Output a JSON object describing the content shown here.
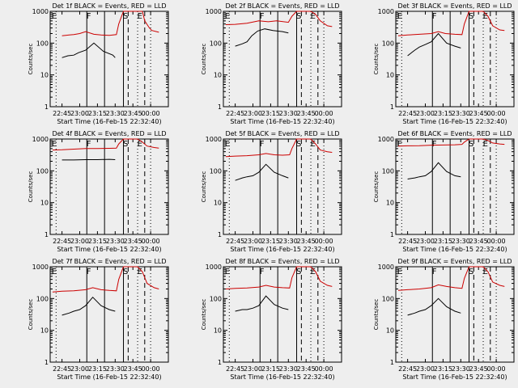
{
  "chart_data": [
    {
      "type": "line",
      "title": "Det 1f BLACK = Events, RED = LLD",
      "xlabel": "Start Time (16-Feb-15 22:32:40)",
      "ylabel": "Counts/sec",
      "x_ticks": [
        "22:45",
        "23:00",
        "23:15",
        "23:30",
        "23:45",
        "00:00"
      ],
      "y_ticks": [
        "1",
        "10",
        "100",
        "1000"
      ],
      "y_scale": "log",
      "ylim": [
        1,
        1000
      ],
      "markers": [
        "E",
        "F",
        "S",
        "E"
      ],
      "series": [
        {
          "name": "Events",
          "color": "#000000",
          "x": [
            0.1,
            0.15,
            0.2,
            0.24,
            0.3,
            0.37,
            0.45,
            0.53,
            0.55
          ],
          "y": [
            35,
            40,
            42,
            50,
            60,
            100,
            55,
            42,
            35
          ]
        },
        {
          "name": "LLD",
          "color": "#cc0000",
          "x": [
            0.1,
            0.16,
            0.2,
            0.25,
            0.3,
            0.37,
            0.43,
            0.5,
            0.56,
            0.58,
            0.62,
            0.66,
            0.74,
            0.78,
            0.8,
            0.84,
            0.86,
            0.92
          ],
          "y": [
            170,
            180,
            185,
            200,
            230,
            190,
            180,
            175,
            185,
            400,
            1000,
            1000,
            1000,
            1000,
            500,
            300,
            250,
            220
          ]
        }
      ]
    },
    {
      "type": "line",
      "title": "Det 2f BLACK = Events, RED = LLD",
      "xlabel": "Start Time (16-Feb-15 22:32:40)",
      "ylabel": "Counts/sec",
      "x_ticks": [
        "22:45",
        "23:00",
        "23:15",
        "23:30",
        "23:45",
        "00:00"
      ],
      "y_ticks": [
        "1",
        "10",
        "100",
        "1000"
      ],
      "y_scale": "log",
      "ylim": [
        1,
        1000
      ],
      "markers": [
        "E",
        "F",
        "S",
        "E"
      ],
      "series": [
        {
          "name": "Events",
          "color": "#000000",
          "x": [
            0.1,
            0.16,
            0.2,
            0.24,
            0.29,
            0.35,
            0.42,
            0.5,
            0.55
          ],
          "y": [
            80,
            95,
            110,
            170,
            240,
            280,
            250,
            230,
            210
          ]
        },
        {
          "name": "LLD",
          "color": "#cc0000",
          "x": [
            0.02,
            0.1,
            0.2,
            0.3,
            0.38,
            0.45,
            0.55,
            0.58,
            0.62,
            0.66,
            0.74,
            0.78,
            0.82,
            0.88,
            0.92
          ],
          "y": [
            380,
            390,
            420,
            500,
            470,
            500,
            450,
            700,
            1000,
            1000,
            1000,
            800,
            500,
            350,
            330
          ]
        }
      ]
    },
    {
      "type": "line",
      "title": "Det 3f BLACK = Events, RED = LLD",
      "xlabel": "Start Time (16-Feb-15 22:32:40)",
      "ylabel": "Counts/sec",
      "x_ticks": [
        "22:45",
        "23:00",
        "23:15",
        "23:30",
        "23:45",
        "00:00"
      ],
      "y_ticks": [
        "1",
        "10",
        "100",
        "1000"
      ],
      "y_scale": "log",
      "ylim": [
        1,
        1000
      ],
      "markers": [
        "E",
        "F",
        "S",
        "E"
      ],
      "series": [
        {
          "name": "Events",
          "color": "#000000",
          "x": [
            0.1,
            0.16,
            0.2,
            0.25,
            0.3,
            0.36,
            0.43,
            0.5,
            0.55
          ],
          "y": [
            40,
            60,
            75,
            90,
            110,
            200,
            100,
            80,
            70
          ]
        },
        {
          "name": "LLD",
          "color": "#cc0000",
          "x": [
            0.02,
            0.1,
            0.2,
            0.3,
            0.36,
            0.42,
            0.5,
            0.56,
            0.58,
            0.62,
            0.66,
            0.74,
            0.78,
            0.82,
            0.88,
            0.92
          ],
          "y": [
            170,
            180,
            190,
            200,
            230,
            200,
            190,
            185,
            400,
            1000,
            1000,
            1000,
            700,
            350,
            260,
            250
          ]
        }
      ]
    },
    {
      "type": "line",
      "title": "Det 4f BLACK = Events, RED = LLD",
      "xlabel": "Start Time (16-Feb-15 22:32:40)",
      "ylabel": "Counts/sec",
      "x_ticks": [
        "22:45",
        "23:00",
        "23:15",
        "23:30",
        "23:45",
        "00:00"
      ],
      "y_ticks": [
        "1",
        "10",
        "100",
        "1000"
      ],
      "y_scale": "log",
      "ylim": [
        1,
        1000
      ],
      "markers": [
        "E",
        "F",
        "S",
        "E"
      ],
      "series": [
        {
          "name": "Events",
          "color": "#000000",
          "x": [
            0.1,
            0.2,
            0.3,
            0.4,
            0.5,
            0.55
          ],
          "y": [
            220,
            220,
            225,
            225,
            230,
            225
          ]
        },
        {
          "name": "LLD",
          "color": "#cc0000",
          "x": [
            0.02,
            0.1,
            0.2,
            0.3,
            0.4,
            0.5,
            0.56,
            0.58,
            0.62,
            0.66,
            0.74,
            0.78,
            0.82,
            0.88,
            0.92
          ],
          "y": [
            450,
            460,
            480,
            500,
            500,
            510,
            520,
            700,
            1000,
            1000,
            1000,
            800,
            600,
            540,
            520
          ]
        }
      ]
    },
    {
      "type": "line",
      "title": "Det 5f BLACK = Events, RED = LLD",
      "xlabel": "Start Time (16-Feb-15 22:32:40)",
      "ylabel": "Counts/sec",
      "x_ticks": [
        "22:45",
        "23:00",
        "23:15",
        "23:30",
        "23:45",
        "00:00"
      ],
      "y_ticks": [
        "1",
        "10",
        "100",
        "1000"
      ],
      "y_scale": "log",
      "ylim": [
        1,
        1000
      ],
      "markers": [
        "E",
        "F",
        "S",
        "E"
      ],
      "series": [
        {
          "name": "Events",
          "color": "#000000",
          "x": [
            0.1,
            0.16,
            0.2,
            0.25,
            0.3,
            0.36,
            0.43,
            0.5,
            0.55
          ],
          "y": [
            50,
            60,
            65,
            70,
            90,
            160,
            90,
            70,
            60
          ]
        },
        {
          "name": "LLD",
          "color": "#cc0000",
          "x": [
            0.02,
            0.1,
            0.2,
            0.3,
            0.36,
            0.43,
            0.5,
            0.56,
            0.58,
            0.62,
            0.66,
            0.74,
            0.78,
            0.82,
            0.88,
            0.92
          ],
          "y": [
            280,
            290,
            300,
            320,
            350,
            320,
            310,
            320,
            500,
            1000,
            1000,
            1000,
            700,
            450,
            400,
            380
          ]
        }
      ]
    },
    {
      "type": "line",
      "title": "Det 6f BLACK = Events, RED = LLD",
      "xlabel": "Start Time (16-Feb-15 22:32:40)",
      "ylabel": "Counts/sec",
      "x_ticks": [
        "22:45",
        "23:00",
        "23:15",
        "23:30",
        "23:45",
        "00:00"
      ],
      "y_ticks": [
        "1",
        "10",
        "100",
        "1000"
      ],
      "y_scale": "log",
      "ylim": [
        1,
        1000
      ],
      "markers": [
        "E",
        "F",
        "S",
        "E"
      ],
      "series": [
        {
          "name": "Events",
          "color": "#000000",
          "x": [
            0.1,
            0.16,
            0.2,
            0.25,
            0.3,
            0.36,
            0.43,
            0.5,
            0.55
          ],
          "y": [
            55,
            60,
            65,
            70,
            95,
            180,
            95,
            70,
            65
          ]
        },
        {
          "name": "LLD",
          "color": "#cc0000",
          "x": [
            0.02,
            0.1,
            0.2,
            0.3,
            0.4,
            0.5,
            0.56,
            0.58,
            0.62,
            0.66,
            0.74,
            0.78,
            0.82,
            0.88,
            0.92
          ],
          "y": [
            600,
            610,
            620,
            640,
            650,
            660,
            680,
            800,
            1000,
            1000,
            1000,
            900,
            750,
            700,
            680
          ]
        }
      ]
    },
    {
      "type": "line",
      "title": "Det 7f BLACK = Events, RED = LLD",
      "xlabel": "Start Time (16-Feb-15 22:32:40)",
      "ylabel": "Counts/sec",
      "x_ticks": [
        "22:45",
        "23:00",
        "23:15",
        "23:30",
        "23:45",
        "00:00"
      ],
      "y_ticks": [
        "1",
        "10",
        "100",
        "1000"
      ],
      "y_scale": "log",
      "ylim": [
        1,
        1000
      ],
      "markers": [
        "E",
        "F",
        "S",
        "E"
      ],
      "series": [
        {
          "name": "Events",
          "color": "#000000",
          "x": [
            0.1,
            0.16,
            0.2,
            0.25,
            0.3,
            0.36,
            0.43,
            0.5,
            0.55
          ],
          "y": [
            30,
            35,
            40,
            45,
            60,
            110,
            60,
            45,
            40
          ]
        },
        {
          "name": "LLD",
          "color": "#cc0000",
          "x": [
            0.02,
            0.1,
            0.2,
            0.3,
            0.36,
            0.43,
            0.5,
            0.56,
            0.58,
            0.62,
            0.66,
            0.74,
            0.78,
            0.82,
            0.88,
            0.92
          ],
          "y": [
            160,
            170,
            175,
            190,
            220,
            190,
            180,
            175,
            400,
            1000,
            1000,
            1000,
            700,
            300,
            220,
            200
          ]
        }
      ]
    },
    {
      "type": "line",
      "title": "Det 8f BLACK = Events, RED = LLD",
      "xlabel": "Start Time (16-Feb-15 22:32:40)",
      "ylabel": "Counts/sec",
      "x_ticks": [
        "22:45",
        "23:00",
        "23:15",
        "23:30",
        "23:45",
        "00:00"
      ],
      "y_ticks": [
        "1",
        "10",
        "100",
        "1000"
      ],
      "y_scale": "log",
      "ylim": [
        1,
        1000
      ],
      "markers": [
        "E",
        "F",
        "S",
        "E"
      ],
      "series": [
        {
          "name": "Events",
          "color": "#000000",
          "x": [
            0.1,
            0.16,
            0.2,
            0.25,
            0.3,
            0.36,
            0.43,
            0.5,
            0.55
          ],
          "y": [
            40,
            45,
            45,
            50,
            60,
            120,
            65,
            50,
            45
          ]
        },
        {
          "name": "LLD",
          "color": "#cc0000",
          "x": [
            0.02,
            0.1,
            0.2,
            0.3,
            0.36,
            0.43,
            0.5,
            0.56,
            0.58,
            0.62,
            0.66,
            0.74,
            0.78,
            0.82,
            0.88,
            0.92
          ],
          "y": [
            200,
            210,
            215,
            230,
            260,
            230,
            220,
            215,
            450,
            1000,
            1000,
            1000,
            700,
            350,
            260,
            240
          ]
        }
      ]
    },
    {
      "type": "line",
      "title": "Det 9f BLACK = Events, RED = LLD",
      "xlabel": "Start Time (16-Feb-15 22:32:40)",
      "ylabel": "Counts/sec",
      "x_ticks": [
        "22:45",
        "23:00",
        "23:15",
        "23:30",
        "23:45",
        "00:00"
      ],
      "y_ticks": [
        "1",
        "10",
        "100",
        "1000"
      ],
      "y_scale": "log",
      "ylim": [
        1,
        1000
      ],
      "markers": [
        "E",
        "F",
        "S",
        "E"
      ],
      "series": [
        {
          "name": "Events",
          "color": "#000000",
          "x": [
            0.1,
            0.16,
            0.2,
            0.25,
            0.3,
            0.36,
            0.43,
            0.5,
            0.55
          ],
          "y": [
            30,
            35,
            40,
            45,
            60,
            100,
            55,
            40,
            35
          ]
        },
        {
          "name": "LLD",
          "color": "#cc0000",
          "x": [
            0.02,
            0.1,
            0.2,
            0.3,
            0.36,
            0.43,
            0.5,
            0.56,
            0.58,
            0.62,
            0.66,
            0.74,
            0.78,
            0.82,
            0.88,
            0.92
          ],
          "y": [
            180,
            190,
            200,
            220,
            270,
            240,
            220,
            210,
            430,
            1000,
            1000,
            1000,
            700,
            330,
            260,
            240
          ]
        }
      ]
    }
  ]
}
